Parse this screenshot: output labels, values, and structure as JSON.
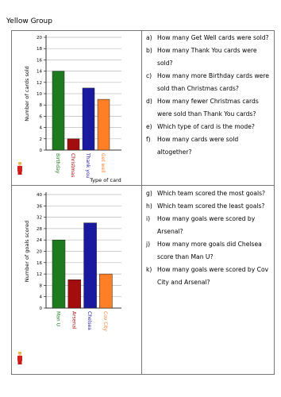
{
  "title": "Yellow Group",
  "chart_data": [
    {
      "type": "bar",
      "y_label": "Number of cards sold",
      "x_label": "Type of card",
      "categories": [
        "Birthday",
        "Christmas",
        "Thank you",
        "Get well"
      ],
      "values": [
        14,
        2,
        11,
        9
      ],
      "colors": [
        "#1e7a1e",
        "#a30d0d",
        "#1a1aa0",
        "#ff7f27"
      ],
      "ylim": [
        0,
        20
      ],
      "yticks": [
        0,
        2,
        4,
        6,
        8,
        10,
        12,
        14,
        16,
        18,
        20
      ],
      "grid": true
    },
    {
      "type": "bar",
      "y_label": "Number of goals scored",
      "categories": [
        "Man U",
        "Arsenal",
        "Chelsea",
        "Cov City"
      ],
      "values": [
        24,
        10,
        30,
        12
      ],
      "colors": [
        "#1e7a1e",
        "#a30d0d",
        "#1a1aa0",
        "#ff7f27"
      ],
      "ylim": [
        0,
        40
      ],
      "yticks": [
        0,
        4,
        8,
        12,
        16,
        20,
        24,
        28,
        32,
        36,
        40
      ],
      "grid": true
    }
  ],
  "questions": [
    [
      {
        "label": "a)",
        "text": "How many Get Well cards were sold?"
      },
      {
        "label": "b)",
        "text": "How many Thank You cards were sold?"
      },
      {
        "label": "c)",
        "text": "How many more Birthday cards were sold than Christmas cards?"
      },
      {
        "label": "d)",
        "text": "How many fewer Christmas cards were sold than Thank You cards?"
      },
      {
        "label": "e)",
        "text": "Which type of card is the mode?"
      },
      {
        "label": "f)",
        "text": "How many cards were sold altogether?"
      }
    ],
    [
      {
        "label": "g)",
        "text": "Which team scored the most goals?"
      },
      {
        "label": "h)",
        "text": "Which team scored the least goals?"
      },
      {
        "label": "i)",
        "text": "How many goals were scored by Arsenal?"
      },
      {
        "label": "j)",
        "text": "How many more goals did Chelsea score than Man U?"
      },
      {
        "label": "k)",
        "text": "How many goals were scored by Cov City and Arsenal?"
      }
    ]
  ]
}
